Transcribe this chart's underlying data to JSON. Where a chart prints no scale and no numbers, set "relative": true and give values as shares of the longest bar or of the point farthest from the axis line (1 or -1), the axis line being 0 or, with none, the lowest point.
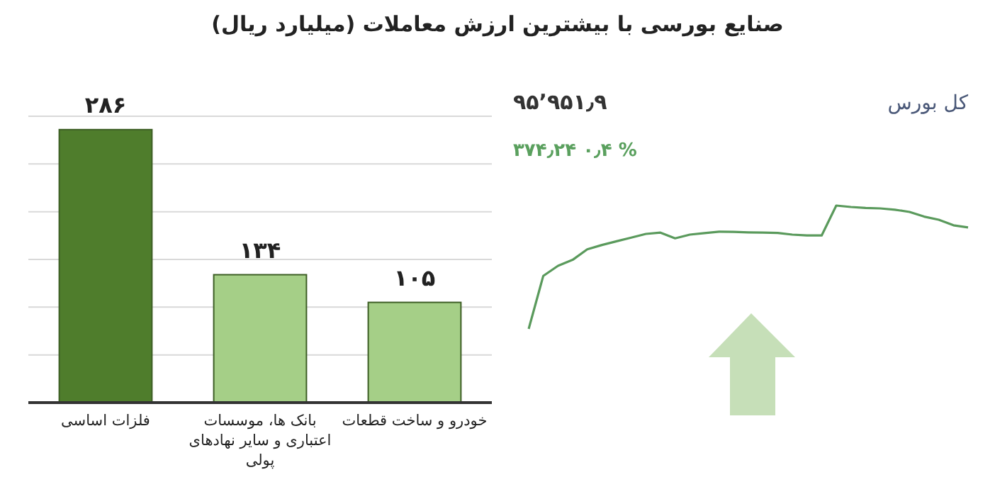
{
  "chart_data": [
    {
      "type": "bar",
      "title": "صنایع بورسی با بیشترین ارزش معاملات  (میلیارد ریال)",
      "categories": [
        "فلزات اساسی",
        "بانک ها، موسسات اعتباری و سایر نهادهای پولی",
        "خودرو و ساخت قطعات"
      ],
      "values": [
        286,
        134,
        105
      ],
      "colors": [
        "#4f7d2c",
        "#a5cf87",
        "#a5cf87"
      ],
      "value_labels": [
        "۲۸۶",
        "۱۳۴",
        "۱۰۵"
      ],
      "ylim": [
        0,
        300
      ],
      "yticks": [
        {
          "value": 0,
          "label": null
        },
        {
          "value": 50,
          "label": null
        },
        {
          "value": 100,
          "label": null
        },
        {
          "value": 150,
          "label": null
        },
        {
          "value": 200,
          "label": null
        },
        {
          "value": 250,
          "label": null
        },
        {
          "value": 300,
          "label": null
        }
      ],
      "grid": "y",
      "tick_labels": "x"
    },
    {
      "type": "line",
      "title": "کل بورس",
      "relative": true,
      "color": "#5a9a5c",
      "categories": [
        null,
        null,
        null,
        null,
        null,
        null,
        null,
        null,
        null,
        null,
        null,
        null,
        null,
        null,
        null,
        null,
        null,
        null,
        null,
        null,
        null,
        null,
        null,
        null,
        null,
        null,
        null,
        null,
        null,
        null,
        null
      ],
      "values": [
        0,
        0.43,
        0.512,
        0.56,
        0.645,
        0.68,
        0.71,
        0.74,
        0.77,
        0.781,
        0.735,
        0.764,
        0.777,
        0.788,
        0.786,
        0.783,
        0.781,
        0.778,
        0.764,
        0.758,
        0.758,
        1,
        0.988,
        0.98,
        0.977,
        0.967,
        0.948,
        0.91,
        0.885,
        0.84,
        0.823
      ],
      "annotations": [
        "۹۵٬۹۵۱٫۹",
        "۳۷۴٫۲۴  ۰٫۴ %"
      ]
    }
  ]
}
